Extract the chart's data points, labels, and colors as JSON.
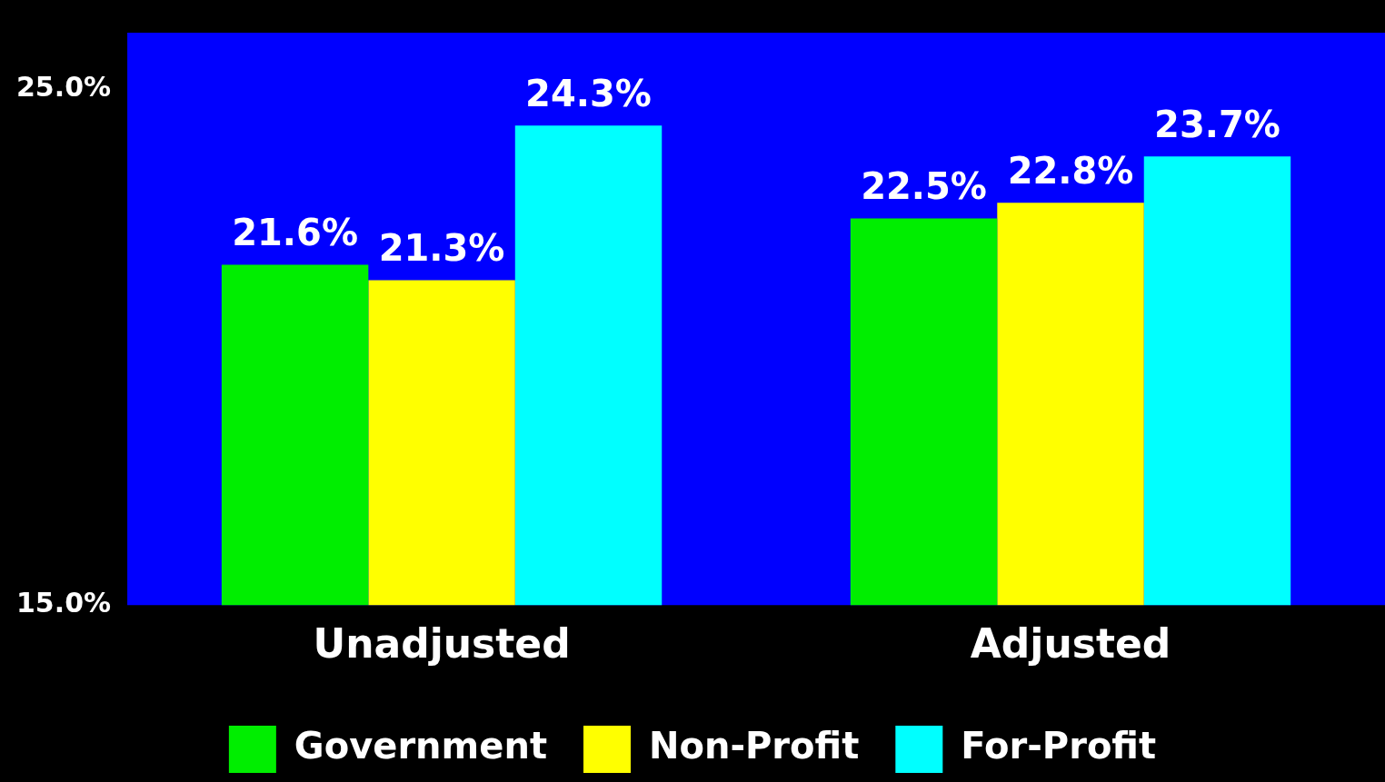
{
  "chart_data": {
    "type": "bar",
    "categories": [
      "Unadjusted",
      "Adjusted"
    ],
    "series": [
      {
        "name": "Government",
        "color": "#00ee00",
        "values": [
          21.6,
          22.5
        ],
        "value_labels": [
          "21.6%",
          "22.5%"
        ]
      },
      {
        "name": "Non-Profit",
        "color": "#ffff00",
        "values": [
          21.3,
          22.8
        ],
        "value_labels": [
          "21.3%",
          "22.8%"
        ]
      },
      {
        "name": "For-Profit",
        "color": "#00ffff",
        "values": [
          24.3,
          23.7
        ],
        "value_labels": [
          "24.3%",
          "23.7%"
        ]
      }
    ],
    "ylim": [
      15,
      26.1
    ],
    "yticks": [
      {
        "value": 15,
        "label": "15.0%"
      },
      {
        "value": 25,
        "label": "25.0%"
      }
    ],
    "grid": false,
    "legend": "bottom"
  }
}
